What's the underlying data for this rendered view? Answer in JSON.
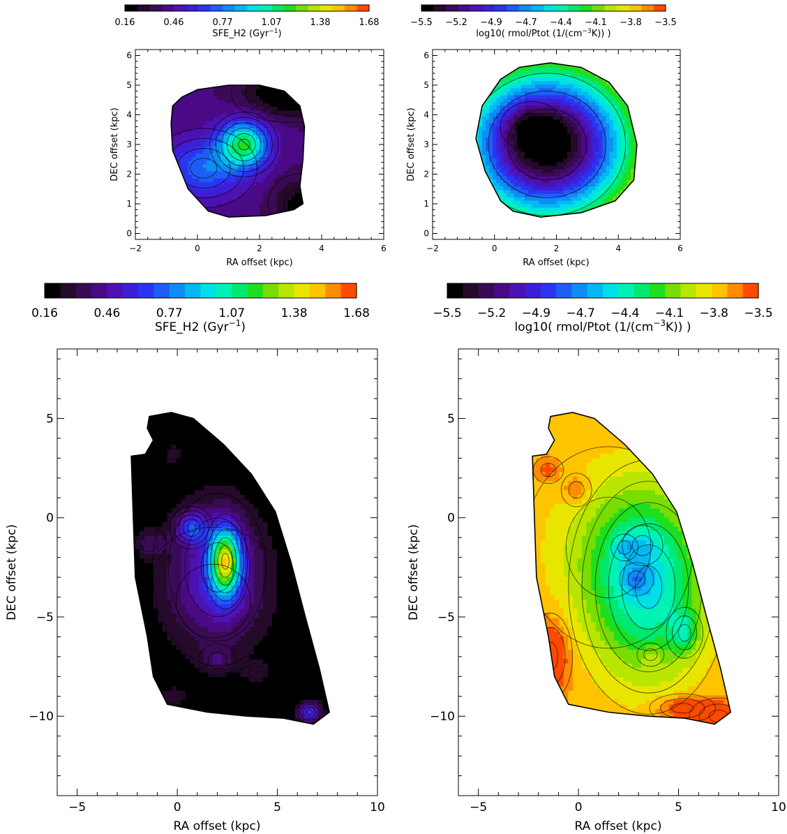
{
  "palette": [
    "#000000",
    "#250a2a",
    "#3a0b55",
    "#4a0a86",
    "#4c12b2",
    "#3d1fd6",
    "#2b35f0",
    "#1d5ef4",
    "#0f8cf5",
    "#04b8f2",
    "#00e0e6",
    "#00f2b4",
    "#00e870",
    "#1ede20",
    "#78dd00",
    "#b8e600",
    "#e8e600",
    "#ffc400",
    "#ff8c00",
    "#ff4a00"
  ],
  "chart_data": [
    {
      "id": "top-left",
      "type": "contour",
      "xlabel": "RA offset (kpc)",
      "ylabel": "DEC offset (kpc)",
      "xlim": [
        -2,
        6
      ],
      "ylim": [
        -0.2,
        6.2
      ],
      "xticks": [
        -2,
        0,
        2,
        4,
        6
      ],
      "yticks": [
        0,
        1,
        2,
        3,
        4,
        5,
        6
      ],
      "colorbar": {
        "label_prefix": "SFE_H2 (Gyr",
        "label_sup": "−1",
        "label_suffix": ")",
        "ticks": [
          "0.16",
          "0.46",
          "0.77",
          "1.07",
          "1.38",
          "1.68"
        ],
        "range": [
          0.16,
          1.68
        ]
      },
      "outline": [
        [
          -0.8,
          4.3
        ],
        [
          -0.5,
          4.6
        ],
        [
          0,
          4.85
        ],
        [
          1,
          5
        ],
        [
          2,
          5
        ],
        [
          2.8,
          4.8
        ],
        [
          3.3,
          4.3
        ],
        [
          3.45,
          3.6
        ],
        [
          3.4,
          2.5
        ],
        [
          3.3,
          1.6
        ],
        [
          3.4,
          1.0
        ],
        [
          3.1,
          0.8
        ],
        [
          2.2,
          0.6
        ],
        [
          1.0,
          0.55
        ],
        [
          0.35,
          0.75
        ],
        [
          -0.3,
          1.5
        ],
        [
          -0.8,
          2.8
        ],
        [
          -0.85,
          3.7
        ]
      ],
      "background": 0.4,
      "blobs": [
        {
          "x": 1.5,
          "y": 3.0,
          "amp": 0.72,
          "sx": 0.55,
          "sy": 0.55
        },
        {
          "x": 0.2,
          "y": 2.2,
          "amp": 0.35,
          "sx": 0.9,
          "sy": 0.7
        },
        {
          "x": 3.0,
          "y": 4.7,
          "amp": -0.3,
          "sx": 1.0,
          "sy": 0.5
        },
        {
          "x": 3.3,
          "y": 1.0,
          "amp": -0.2,
          "sx": 0.6,
          "sy": 0.6
        }
      ]
    },
    {
      "id": "top-right",
      "type": "contour",
      "xlabel": "RA offset (kpc)",
      "ylabel": "DEC offset (kpc)",
      "xlim": [
        -2,
        6
      ],
      "ylim": [
        -0.2,
        6.2
      ],
      "xticks": [
        -2,
        0,
        2,
        4,
        6
      ],
      "yticks": [
        0,
        1,
        2,
        3,
        4,
        5,
        6
      ],
      "colorbar": {
        "label_prefix": "log10( rmol/Ptot (1/(cm",
        "label_sup": "−3",
        "label_suffix": "K)) )",
        "ticks": [
          "−5.5",
          "−5.2",
          "−4.9",
          "−4.7",
          "−4.4",
          "−4.1",
          "−3.8",
          "−3.5"
        ],
        "range": [
          -5.5,
          -3.5
        ]
      },
      "outline": [
        [
          0.2,
          5.2
        ],
        [
          0.8,
          5.6
        ],
        [
          1.8,
          5.75
        ],
        [
          2.8,
          5.6
        ],
        [
          3.7,
          5.1
        ],
        [
          4.3,
          4.3
        ],
        [
          4.6,
          3.0
        ],
        [
          4.5,
          1.8
        ],
        [
          3.9,
          1.1
        ],
        [
          2.8,
          0.7
        ],
        [
          1.5,
          0.55
        ],
        [
          0.6,
          0.75
        ],
        [
          0.2,
          1.1
        ],
        [
          -0.3,
          2.1
        ],
        [
          -0.6,
          3.2
        ],
        [
          -0.4,
          4.3
        ]
      ],
      "background": -3.45,
      "blobs": [
        {
          "x": 1.7,
          "y": 3.0,
          "amp": -2.1,
          "sx": 1.9,
          "sy": 1.8
        },
        {
          "x": 1.2,
          "y": 3.6,
          "amp": -0.25,
          "sx": 0.6,
          "sy": 0.5
        }
      ]
    },
    {
      "id": "bottom-left",
      "type": "contour",
      "xlabel": "RA offset (kpc)",
      "ylabel": "DEC offset (kpc)",
      "xlim": [
        -6,
        10
      ],
      "ylim": [
        -14,
        8.5
      ],
      "xticks": [
        -5,
        0,
        5,
        10
      ],
      "yticks": [
        -10,
        -5,
        0,
        5
      ],
      "colorbar": {
        "label_prefix": "SFE_H2 (Gyr",
        "label_sup": "−1",
        "label_suffix": ")",
        "ticks": [
          "0.16",
          "0.46",
          "0.77",
          "1.07",
          "1.38",
          "1.68"
        ],
        "range": [
          0.16,
          1.68
        ]
      },
      "outline": [
        [
          -1.4,
          5.1
        ],
        [
          -0.3,
          5.3
        ],
        [
          0.8,
          5.0
        ],
        [
          2.3,
          3.7
        ],
        [
          3.7,
          2.2
        ],
        [
          4.9,
          0.3
        ],
        [
          5.7,
          -2.3
        ],
        [
          6.4,
          -5.0
        ],
        [
          7.1,
          -7.6
        ],
        [
          7.6,
          -9.8
        ],
        [
          6.8,
          -10.4
        ],
        [
          5.3,
          -10.1
        ],
        [
          3.5,
          -10.0
        ],
        [
          1.5,
          -9.8
        ],
        [
          -0.5,
          -9.4
        ],
        [
          -1.2,
          -8.0
        ],
        [
          -1.5,
          -6.0
        ],
        [
          -2.1,
          -3.0
        ],
        [
          -2.2,
          0.0
        ],
        [
          -2.3,
          3.1
        ],
        [
          -1.6,
          3.2
        ],
        [
          -1.2,
          3.9
        ],
        [
          -1.5,
          4.5
        ]
      ],
      "background": 0.14,
      "blobs": [
        {
          "x": 2.4,
          "y": -2.2,
          "amp": 0.95,
          "sx": 0.55,
          "sy": 1.2
        },
        {
          "x": 2.0,
          "y": -2.5,
          "amp": 0.32,
          "sx": 1.7,
          "sy": 2.6
        },
        {
          "x": 0.7,
          "y": -0.5,
          "amp": 0.38,
          "sx": 0.55,
          "sy": 0.55
        },
        {
          "x": 6.6,
          "y": -9.8,
          "amp": 0.5,
          "sx": 0.45,
          "sy": 0.4
        },
        {
          "x": -1.4,
          "y": -1.3,
          "amp": 0.18,
          "sx": 0.5,
          "sy": 0.5
        },
        {
          "x": 2.0,
          "y": -7.2,
          "amp": 0.15,
          "sx": 0.55,
          "sy": 0.5
        },
        {
          "x": 4.0,
          "y": -7.8,
          "amp": 0.13,
          "sx": 0.5,
          "sy": 0.4
        },
        {
          "x": -0.2,
          "y": -9.0,
          "amp": 0.13,
          "sx": 0.6,
          "sy": 0.4
        },
        {
          "x": -0.2,
          "y": 3.2,
          "amp": 0.15,
          "sx": 0.35,
          "sy": 0.35
        },
        {
          "x": 1.8,
          "y": -4.2,
          "amp": 0.12,
          "sx": 2.2,
          "sy": 2.2
        }
      ]
    },
    {
      "id": "bottom-right",
      "type": "contour",
      "xlabel": "RA offset (kpc)",
      "ylabel": "DEC offset (kpc)",
      "xlim": [
        -6,
        10
      ],
      "ylim": [
        -14,
        8.5
      ],
      "xticks": [
        -5,
        0,
        5,
        10
      ],
      "yticks": [
        -10,
        -5,
        0,
        5
      ],
      "colorbar": {
        "label_prefix": "log10( rmol/Ptot (1/(cm",
        "label_sup": "−3",
        "label_suffix": "K)) )",
        "ticks": [
          "−5.5",
          "−5.2",
          "−4.9",
          "−4.7",
          "−4.4",
          "−4.1",
          "−3.8",
          "−3.5"
        ],
        "range": [
          -5.5,
          -3.5
        ]
      },
      "outline": [
        [
          -1.4,
          5.1
        ],
        [
          -0.3,
          5.3
        ],
        [
          0.8,
          5.0
        ],
        [
          2.3,
          3.7
        ],
        [
          3.7,
          2.2
        ],
        [
          4.9,
          0.3
        ],
        [
          5.7,
          -2.3
        ],
        [
          6.4,
          -5.0
        ],
        [
          7.1,
          -7.6
        ],
        [
          7.6,
          -9.8
        ],
        [
          6.8,
          -10.4
        ],
        [
          5.3,
          -10.1
        ],
        [
          3.5,
          -10.0
        ],
        [
          1.5,
          -9.8
        ],
        [
          -0.5,
          -9.4
        ],
        [
          -1.2,
          -8.0
        ],
        [
          -1.5,
          -6.0
        ],
        [
          -2.1,
          -3.0
        ],
        [
          -2.2,
          0.0
        ],
        [
          -2.3,
          3.1
        ],
        [
          -1.6,
          3.2
        ],
        [
          -1.2,
          3.9
        ],
        [
          -1.5,
          4.5
        ]
      ],
      "background": -3.7,
      "blobs": [
        {
          "x": 3.5,
          "y": -3.5,
          "amp": -0.65,
          "sx": 2.0,
          "sy": 3.2
        },
        {
          "x": 1.5,
          "y": -1.5,
          "amp": -0.2,
          "sx": 2.5,
          "sy": 3.0
        },
        {
          "x": 5.3,
          "y": -5.8,
          "amp": -0.3,
          "sx": 0.5,
          "sy": 0.7
        },
        {
          "x": 2.9,
          "y": -3.1,
          "amp": -0.25,
          "sx": 0.5,
          "sy": 0.5
        },
        {
          "x": 2.3,
          "y": -1.5,
          "amp": -0.2,
          "sx": 0.4,
          "sy": 0.4
        },
        {
          "x": 3.2,
          "y": -1.4,
          "amp": -0.15,
          "sx": 0.6,
          "sy": 0.6
        },
        {
          "x": -0.1,
          "y": 1.4,
          "amp": 0.22,
          "sx": 0.45,
          "sy": 0.5
        },
        {
          "x": -1.5,
          "y": 2.4,
          "amp": 0.18,
          "sx": 0.45,
          "sy": 0.4
        },
        {
          "x": -1.4,
          "y": -7.0,
          "amp": 0.38,
          "sx": 0.6,
          "sy": 1.2
        },
        {
          "x": 7.0,
          "y": -10.0,
          "amp": 0.3,
          "sx": 0.8,
          "sy": 0.5
        },
        {
          "x": 5.2,
          "y": -9.6,
          "amp": 0.3,
          "sx": 0.9,
          "sy": 0.4
        },
        {
          "x": 3.6,
          "y": -6.9,
          "amp": 0.12,
          "sx": 0.4,
          "sy": 0.35
        }
      ]
    }
  ]
}
